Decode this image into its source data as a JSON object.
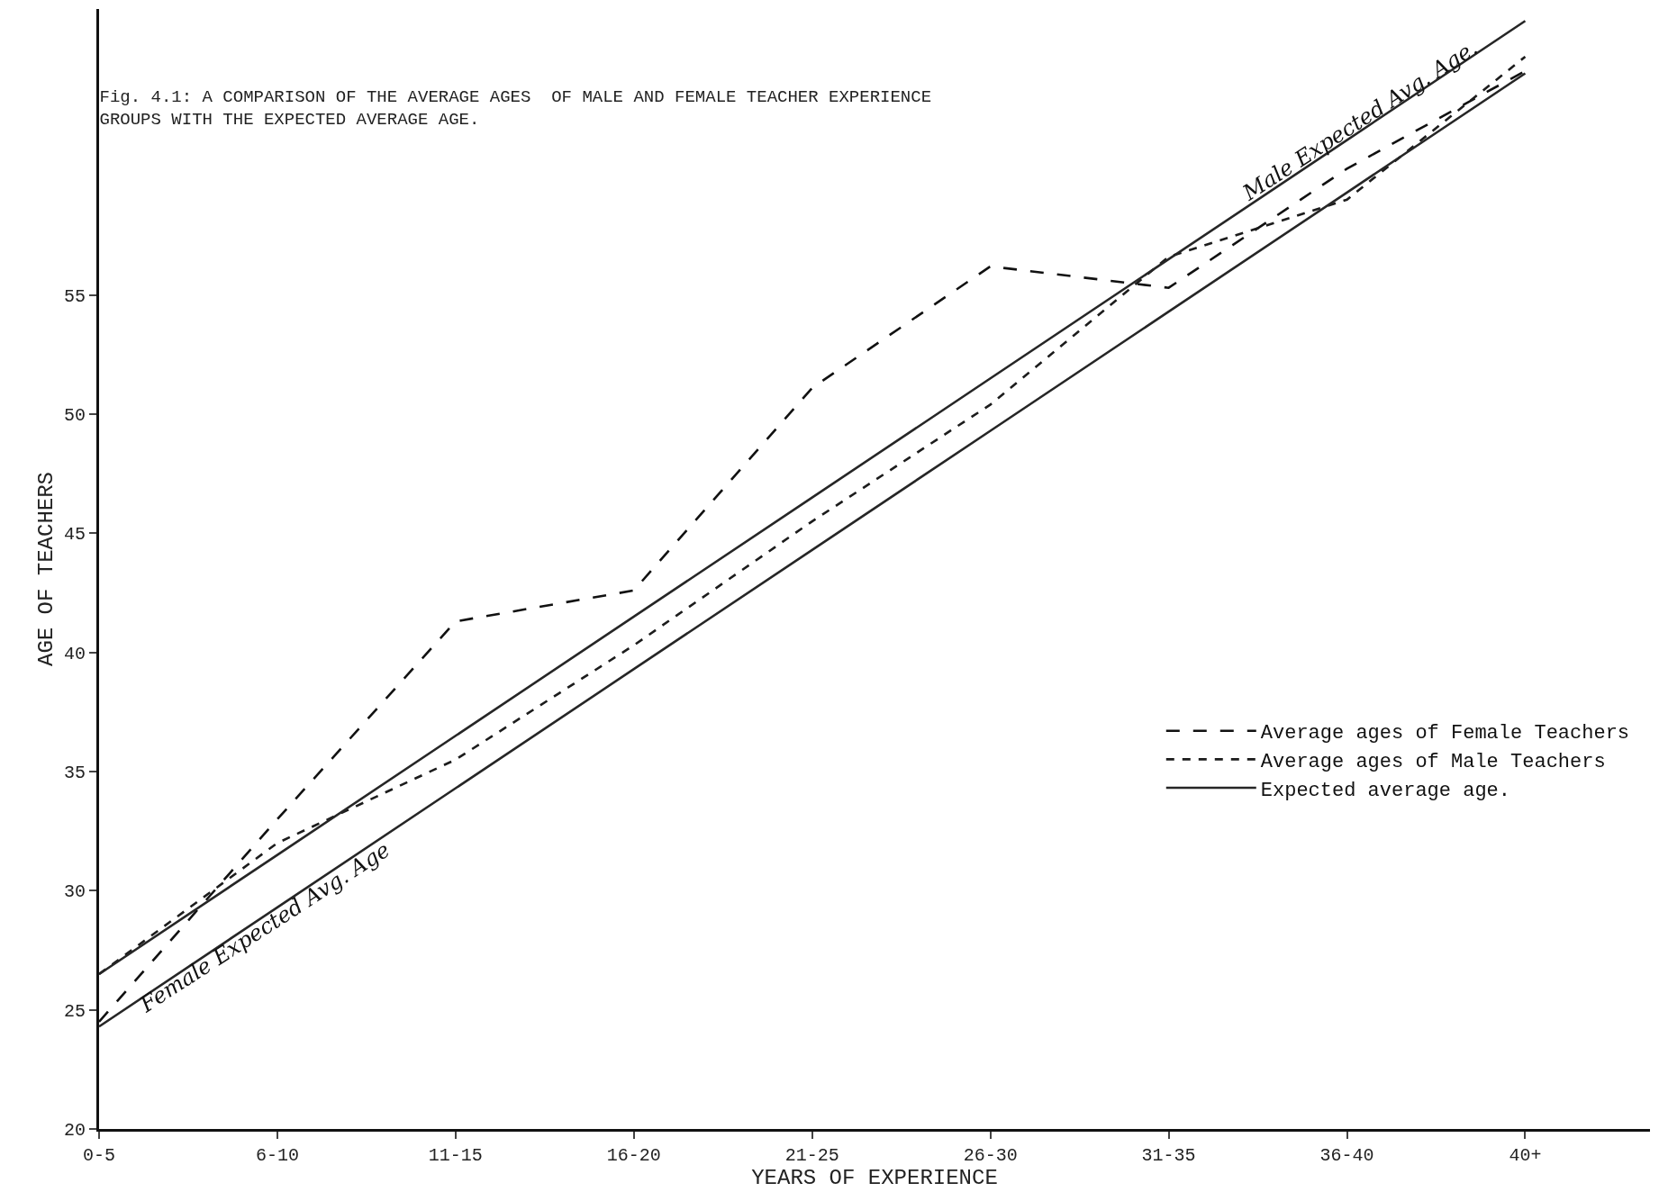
{
  "chart_data": {
    "type": "line",
    "title": "Fig. 4.1: A COMPARISON OF THE AVERAGE AGES  OF MALE AND FEMALE TEACHER EXPERIENCE\nGROUPS WITH THE EXPECTED AVERAGE AGE.",
    "xlabel": "YEARS OF EXPERIENCE",
    "ylabel": "AGE OF TEACHERS",
    "categories": [
      "0-5",
      "6-10",
      "11-15",
      "16-20",
      "21-25",
      "26-30",
      "31-35",
      "36-40",
      "40+"
    ],
    "series": [
      {
        "name": "Average ages of Female Teachers",
        "color": "#111111",
        "line_style": "dashed",
        "values": [
          24.5,
          33,
          41.3,
          42.6,
          51.1,
          56.2,
          55.3,
          60.3,
          64.4
        ]
      },
      {
        "name": "Average ages of Male Teachers",
        "color": "#1c1c1c",
        "line_style": "dotted",
        "values": [
          26.5,
          32,
          35.5,
          40.3,
          45.5,
          50.4,
          56.6,
          59,
          65
        ]
      },
      {
        "name": "Expected average age.",
        "color": "#262626",
        "line_style": "solid",
        "values": [
          26.5,
          31.5,
          36.5,
          41.5,
          46.5,
          51.5,
          56.5,
          61.5,
          66.5
        ]
      },
      {
        "color": "#262626",
        "line_style": "solid",
        "values": [
          24.3,
          29.3,
          34.3,
          39.3,
          44.3,
          49.3,
          54.3,
          59.3,
          64.3
        ]
      }
    ],
    "annotations": [
      {
        "text": "Female Expected Avg. Age",
        "x": "6-10",
        "y": 29.3
      },
      {
        "text": "Male Expected Avg. Age.",
        "x": "36-40",
        "y": 61.5
      }
    ],
    "ylim": [
      20,
      67
    ],
    "yticks": [
      20,
      25,
      30,
      35,
      40,
      45,
      50,
      55
    ],
    "legend": "right",
    "marker": "none"
  }
}
